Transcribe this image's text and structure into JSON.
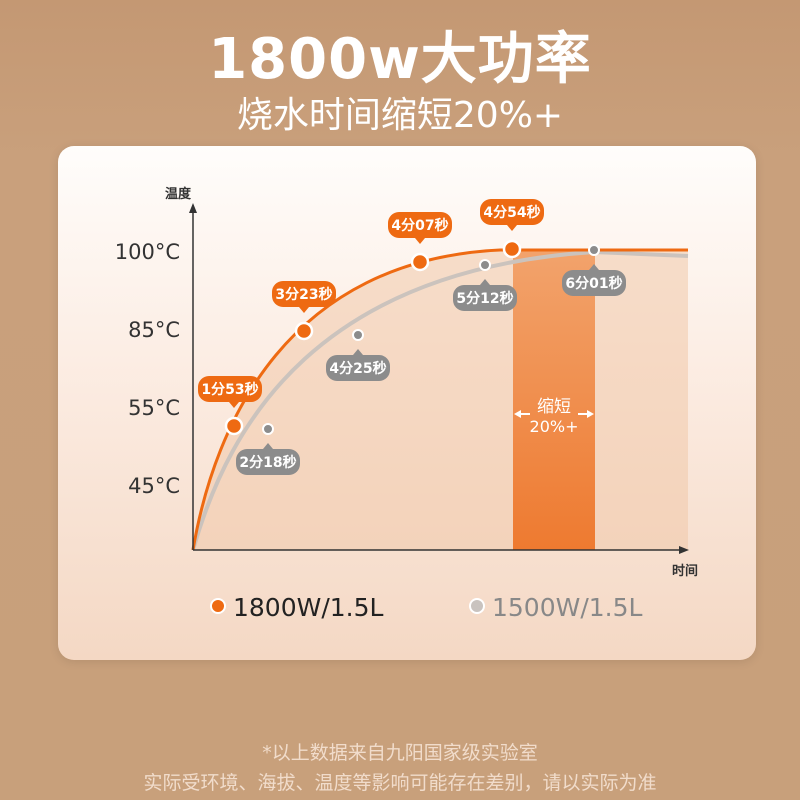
{
  "header": {
    "title": "1800w大功率",
    "subtitle": "烧水时间缩短20%+"
  },
  "chart_data": {
    "type": "line",
    "ylabel": "温度",
    "xlabel": "时间",
    "y_ticks": [
      "100°C",
      "85°C",
      "55°C",
      "45°C"
    ],
    "series": [
      {
        "name": "1800W/1.5L",
        "color": "#ee6a12",
        "points": [
          {
            "label": "1分53秒"
          },
          {
            "label": "3分23秒"
          },
          {
            "label": "4分07秒"
          },
          {
            "label": "4分54秒"
          }
        ]
      },
      {
        "name": "1500W/1.5L",
        "color": "#8c8c8c",
        "points": [
          {
            "label": "2分18秒"
          },
          {
            "label": "4分25秒"
          },
          {
            "label": "5分12秒"
          },
          {
            "label": "6分01秒"
          }
        ]
      }
    ],
    "annotation": {
      "line1": "缩短",
      "line2": "20%+"
    }
  },
  "footer": {
    "line1": "*以上数据来自九阳国家级实验室",
    "line2": "实际受环境、海拔、温度等影响可能存在差别，请以实际为准"
  }
}
